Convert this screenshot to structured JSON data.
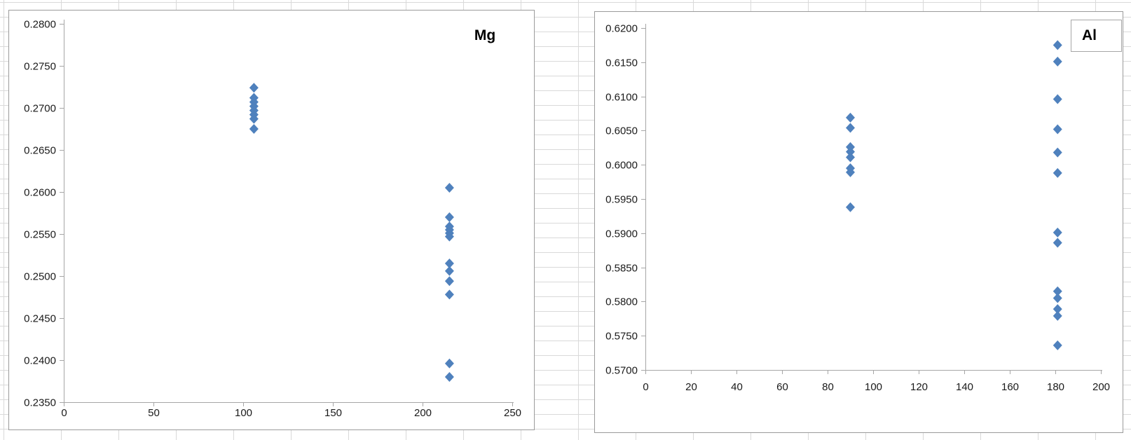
{
  "colors": {
    "marker": "#4F81BD",
    "axis_line": "#a6a6a6",
    "chart_border": "#9b9b9b",
    "tick_text": "#1a1a1a",
    "worksheet_gridline": "#d9d9d9",
    "chart_background": "#ffffff"
  },
  "chart_data": [
    {
      "type": "scatter",
      "title": "Mg",
      "legend": {
        "labels": [
          "Mg"
        ],
        "position": "top-right",
        "boxed": false
      },
      "grid": false,
      "xlim": [
        0,
        250
      ],
      "ylim": [
        0.235,
        0.28
      ],
      "x_tick_labels": [
        "0",
        "50",
        "100",
        "150",
        "200",
        "250"
      ],
      "y_tick_labels": [
        "0.2800",
        "0.2750",
        "0.2700",
        "0.2650",
        "0.2600",
        "0.2550",
        "0.2500",
        "0.2450",
        "0.2400",
        "0.2350"
      ],
      "marker": {
        "shape": "diamond",
        "color": "#4F81BD",
        "size": 13
      },
      "series": [
        {
          "name": "Mg",
          "points": [
            [
              106,
              0.2724
            ],
            [
              106,
              0.2712
            ],
            [
              106,
              0.2707
            ],
            [
              106,
              0.2702
            ],
            [
              106,
              0.2697
            ],
            [
              106,
              0.2692
            ],
            [
              106,
              0.2687
            ],
            [
              106,
              0.2675
            ],
            [
              215,
              0.2605
            ],
            [
              215,
              0.257
            ],
            [
              215,
              0.2559
            ],
            [
              215,
              0.2555
            ],
            [
              215,
              0.2551
            ],
            [
              215,
              0.2547
            ],
            [
              215,
              0.2515
            ],
            [
              215,
              0.2506
            ],
            [
              215,
              0.2494
            ],
            [
              215,
              0.2478
            ],
            [
              215,
              0.2396
            ],
            [
              215,
              0.238
            ]
          ]
        }
      ]
    },
    {
      "type": "scatter",
      "title": "Al",
      "legend": {
        "labels": [
          "Al"
        ],
        "position": "top-right",
        "boxed": true
      },
      "grid": false,
      "xlim": [
        0,
        200
      ],
      "ylim": [
        0.57,
        0.62
      ],
      "x_tick_labels": [
        "0",
        "20",
        "40",
        "60",
        "80",
        "100",
        "120",
        "140",
        "160",
        "180",
        "200"
      ],
      "y_tick_labels": [
        "0.6200",
        "0.6150",
        "0.6100",
        "0.6050",
        "0.6000",
        "0.5950",
        "0.5900",
        "0.5850",
        "0.5800",
        "0.5750",
        "0.5700"
      ],
      "marker": {
        "shape": "diamond",
        "color": "#4F81BD",
        "size": 13
      },
      "series": [
        {
          "name": "Al",
          "points": [
            [
              90,
              0.6069
            ],
            [
              90,
              0.6054
            ],
            [
              90,
              0.6026
            ],
            [
              90,
              0.6019
            ],
            [
              90,
              0.6011
            ],
            [
              90,
              0.5995
            ],
            [
              90,
              0.5989
            ],
            [
              90,
              0.5938
            ],
            [
              181,
              0.6175
            ],
            [
              181,
              0.6151
            ],
            [
              181,
              0.6096
            ],
            [
              181,
              0.6052
            ],
            [
              181,
              0.6018
            ],
            [
              181,
              0.5988
            ],
            [
              181,
              0.5901
            ],
            [
              181,
              0.5886
            ],
            [
              181,
              0.5815
            ],
            [
              181,
              0.5805
            ],
            [
              181,
              0.5789
            ],
            [
              181,
              0.5779
            ],
            [
              181,
              0.5736
            ]
          ]
        }
      ]
    }
  ]
}
